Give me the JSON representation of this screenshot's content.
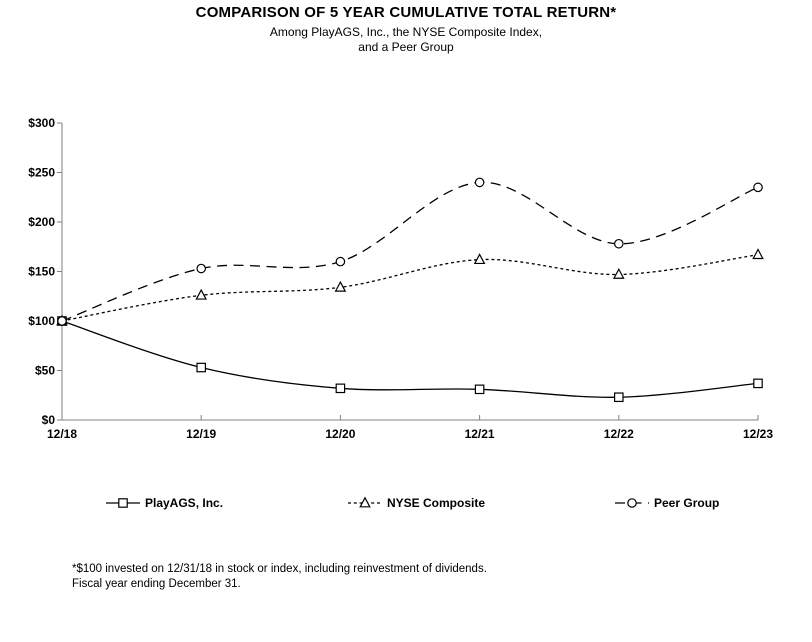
{
  "page": {
    "title": "COMPARISON OF 5 YEAR CUMULATIVE TOTAL RETURN*",
    "subtitle_line1": "Among PlayAGS, Inc., the NYSE Composite Index,",
    "subtitle_line2": "and a Peer Group",
    "footnote_line1": "*$100 invested on 12/31/18 in stock or index, including reinvestment of dividends.",
    "footnote_line2": "Fiscal year ending December 31."
  },
  "colors": {
    "series_stroke": "#000000",
    "axis_stroke": "#808080",
    "marker_fill": "#ffffff",
    "background": "#ffffff"
  },
  "chart_data": {
    "type": "line",
    "title": "COMPARISON OF 5 YEAR CUMULATIVE TOTAL RETURN*",
    "subtitle": "Among PlayAGS, Inc., the NYSE Composite Index, and a Peer Group",
    "categories": [
      "12/18",
      "12/19",
      "12/20",
      "12/21",
      "12/22",
      "12/23"
    ],
    "series": [
      {
        "name": "PlayAGS, Inc.",
        "marker": "square",
        "line_style": "solid",
        "values": [
          100,
          53,
          32,
          31,
          23,
          37
        ]
      },
      {
        "name": "NYSE Composite",
        "marker": "triangle",
        "line_style": "dotted",
        "values": [
          100,
          126,
          134,
          162,
          147,
          167
        ]
      },
      {
        "name": "Peer Group",
        "marker": "circle",
        "line_style": "dashed",
        "values": [
          100,
          153,
          160,
          240,
          178,
          235
        ]
      }
    ],
    "y_axis": {
      "range": [
        0,
        300
      ],
      "ticks": [
        {
          "label": "$0",
          "value": 0
        },
        {
          "label": "$50",
          "value": 50
        },
        {
          "label": "$100",
          "value": 100
        },
        {
          "label": "$150",
          "value": 150
        },
        {
          "label": "$200",
          "value": 200
        },
        {
          "label": "$250",
          "value": 250
        },
        {
          "label": "$300",
          "value": 300
        }
      ]
    },
    "xlabel": "",
    "ylabel": "",
    "grid": false,
    "legend_position": "bottom",
    "curve": "smooth"
  }
}
